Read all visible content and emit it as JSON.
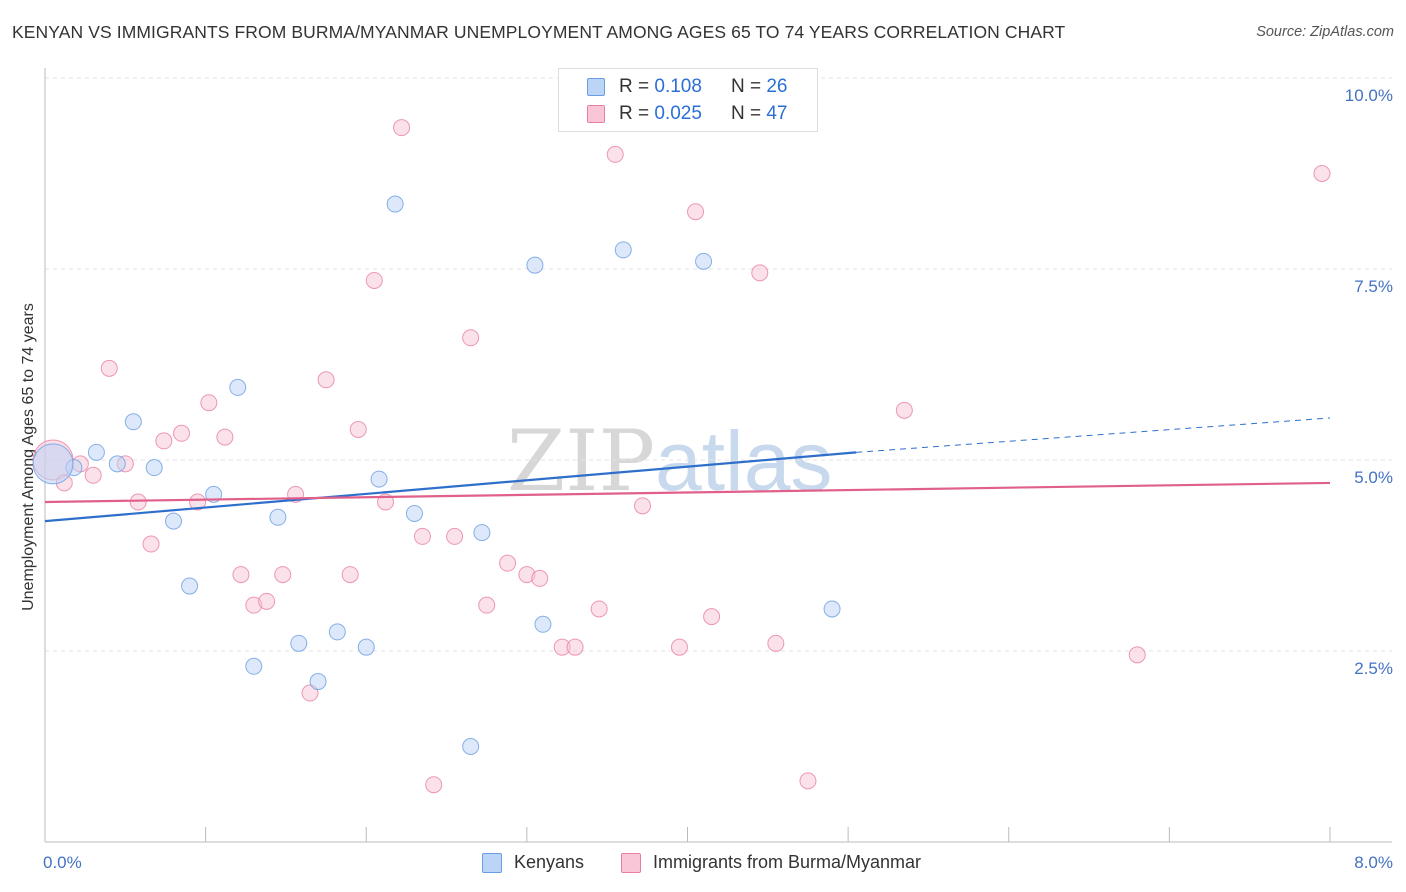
{
  "title": "KENYAN VS IMMIGRANTS FROM BURMA/MYANMAR UNEMPLOYMENT AMONG AGES 65 TO 74 YEARS CORRELATION CHART",
  "source": "Source: ZipAtlas.com",
  "watermark": {
    "part1": "ZIP",
    "part2": "atlas"
  },
  "legend": {
    "r_label": "R =",
    "n_label": "N =",
    "series": [
      {
        "name": "Kenyans",
        "r": "0.108",
        "n": "26",
        "color": "#6a9de3",
        "fill": "#bcd4f5"
      },
      {
        "name": "Immigrants from Burma/Myanmar",
        "r": "0.025",
        "n": "47",
        "color": "#e87fa1",
        "fill": "#f8c6d6"
      }
    ]
  },
  "chart_data": {
    "type": "scatter",
    "title": "KENYAN VS IMMIGRANTS FROM BURMA/MYANMAR UNEMPLOYMENT AMONG AGES 65 TO 74 YEARS CORRELATION CHART",
    "xlabel": "",
    "ylabel": "Unemployment Among Ages 65 to 74 years",
    "xlim": [
      0,
      8
    ],
    "ylim": [
      0,
      10
    ],
    "x_tick_labels": [
      "0.0%",
      "8.0%"
    ],
    "y_ticks": [
      2.5,
      5.0,
      7.5,
      10.0
    ],
    "y_tick_labels": [
      "2.5%",
      "5.0%",
      "7.5%",
      "10.0%"
    ],
    "grid": true,
    "series": [
      {
        "name": "Kenyans",
        "color": "#6a9de3",
        "points": [
          [
            0.18,
            4.9
          ],
          [
            0.32,
            5.1
          ],
          [
            0.45,
            4.95
          ],
          [
            0.55,
            5.5
          ],
          [
            0.68,
            4.9
          ],
          [
            0.8,
            4.2
          ],
          [
            0.9,
            3.35
          ],
          [
            1.05,
            4.55
          ],
          [
            1.2,
            5.95
          ],
          [
            1.3,
            2.3
          ],
          [
            1.45,
            4.25
          ],
          [
            1.58,
            2.6
          ],
          [
            1.7,
            2.1
          ],
          [
            1.82,
            2.75
          ],
          [
            2.0,
            2.55
          ],
          [
            2.08,
            4.75
          ],
          [
            2.18,
            8.35
          ],
          [
            2.3,
            4.3
          ],
          [
            2.65,
            1.25
          ],
          [
            2.72,
            4.05
          ],
          [
            3.05,
            7.55
          ],
          [
            3.1,
            2.85
          ],
          [
            3.6,
            7.75
          ],
          [
            4.1,
            7.6
          ],
          [
            4.9,
            3.05
          ],
          [
            0.05,
            4.95
          ]
        ],
        "trend": {
          "x": [
            0,
            5.05
          ],
          "y": [
            4.2,
            5.1
          ]
        },
        "trend_ext": {
          "x": [
            5.05,
            8.0
          ],
          "y": [
            5.1,
            5.55
          ]
        }
      },
      {
        "name": "Immigrants from Burma/Myanmar",
        "color": "#e87fa1",
        "points": [
          [
            0.05,
            5.0
          ],
          [
            0.12,
            4.7
          ],
          [
            0.22,
            4.95
          ],
          [
            0.3,
            4.8
          ],
          [
            0.4,
            6.2
          ],
          [
            0.5,
            4.95
          ],
          [
            0.58,
            4.45
          ],
          [
            0.66,
            3.9
          ],
          [
            0.74,
            5.25
          ],
          [
            0.85,
            5.35
          ],
          [
            0.95,
            4.45
          ],
          [
            1.02,
            5.75
          ],
          [
            1.12,
            5.3
          ],
          [
            1.22,
            3.5
          ],
          [
            1.3,
            3.1
          ],
          [
            1.38,
            3.15
          ],
          [
            1.48,
            3.5
          ],
          [
            1.56,
            4.55
          ],
          [
            1.65,
            1.95
          ],
          [
            1.75,
            6.05
          ],
          [
            1.9,
            3.5
          ],
          [
            1.95,
            5.4
          ],
          [
            2.05,
            7.35
          ],
          [
            2.12,
            4.45
          ],
          [
            2.22,
            9.35
          ],
          [
            2.35,
            4.0
          ],
          [
            2.42,
            0.75
          ],
          [
            2.55,
            4.0
          ],
          [
            2.65,
            6.6
          ],
          [
            2.75,
            3.1
          ],
          [
            2.88,
            3.65
          ],
          [
            3.0,
            3.5
          ],
          [
            3.08,
            3.45
          ],
          [
            3.22,
            2.55
          ],
          [
            3.3,
            2.55
          ],
          [
            3.45,
            3.05
          ],
          [
            3.55,
            9.0
          ],
          [
            3.72,
            4.4
          ],
          [
            3.95,
            2.55
          ],
          [
            4.05,
            8.25
          ],
          [
            4.15,
            2.95
          ],
          [
            4.45,
            7.45
          ],
          [
            4.55,
            2.6
          ],
          [
            4.75,
            0.8
          ],
          [
            5.35,
            5.65
          ],
          [
            6.8,
            2.45
          ],
          [
            7.95,
            8.75
          ]
        ],
        "trend": {
          "x": [
            0,
            8.0
          ],
          "y": [
            4.45,
            4.7
          ]
        }
      }
    ]
  }
}
